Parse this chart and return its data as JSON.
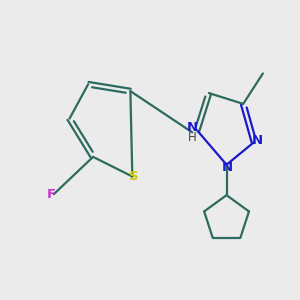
{
  "background_color": "#ebebeb",
  "bond_color": "#2d6b5e",
  "bond_width": 1.6,
  "N_color": "#1a1acc",
  "S_color": "#cccc00",
  "F_color": "#cc33cc",
  "figsize": [
    3.0,
    3.0
  ],
  "dpi": 100,
  "xlim": [
    0,
    10
  ],
  "ylim": [
    0,
    10
  ]
}
